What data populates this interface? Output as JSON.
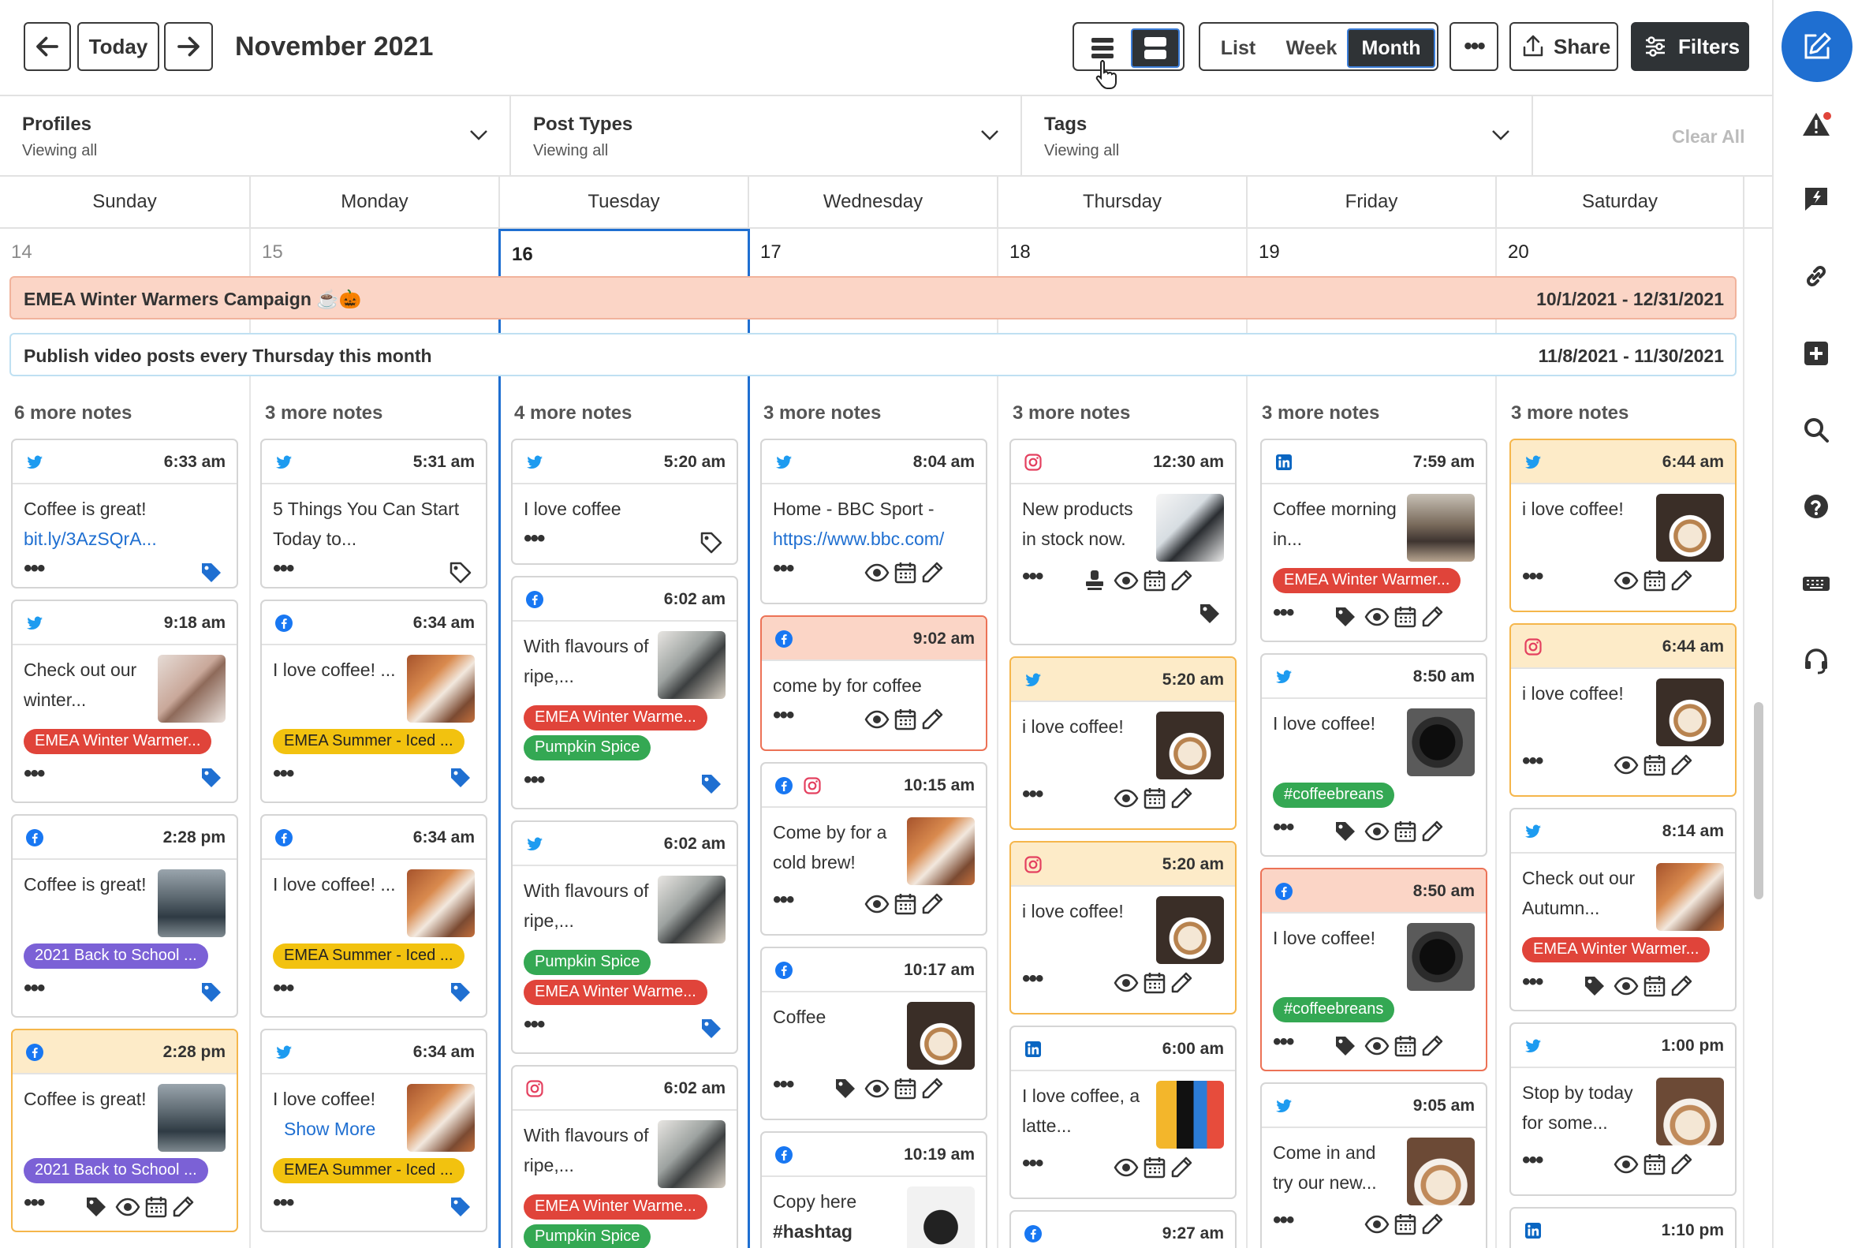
{
  "header": {
    "title": "November 2021",
    "today": "Today",
    "views": [
      "List",
      "Week",
      "Month"
    ],
    "active_view": "Month",
    "share": "Share",
    "filters": "Filters"
  },
  "filters": [
    {
      "title": "Profiles",
      "sub": "Viewing all"
    },
    {
      "title": "Post Types",
      "sub": "Viewing all"
    },
    {
      "title": "Tags",
      "sub": "Viewing all"
    }
  ],
  "clear_all": "Clear All",
  "days": [
    "Sunday",
    "Monday",
    "Tuesday",
    "Wednesday",
    "Thursday",
    "Friday",
    "Saturday"
  ],
  "dates": [
    "14",
    "15",
    "16",
    "17",
    "18",
    "19",
    "20"
  ],
  "banners": [
    {
      "label": "EMEA Winter Warmers Campaign ☕🎃",
      "range": "10/1/2021 - 12/31/2021"
    },
    {
      "label": "Publish video posts every Thursday this month",
      "range": "11/8/2021 - 11/30/2021"
    }
  ],
  "more_notes": [
    "6 more notes",
    "3 more notes",
    "4 more notes",
    "3 more notes",
    "3 more notes",
    "3 more notes",
    "3 more notes"
  ],
  "tag_colors": {
    "emea-winter": "#e0443a",
    "emea-summer": "#f2c20f",
    "pumpkin": "#34a853",
    "back-school": "#7b61d6",
    "coffeebreans": "#34a853"
  },
  "columns": [
    [
      {
        "time": "6:33 am",
        "net": [
          "twitter"
        ],
        "text": "Coffee is great!",
        "link": "bit.ly/3AzSQrA...",
        "actions": [
          "dots",
          "tag-blue"
        ]
      },
      {
        "time": "9:18 am",
        "net": [
          "twitter"
        ],
        "text": "Check out our winter...",
        "thumb": "cocoa",
        "tags": [
          {
            "t": "EMEA Winter Warmer...",
            "c": "emea-winter"
          }
        ],
        "actions": [
          "dots",
          "tag-blue"
        ]
      },
      {
        "time": "2:28 pm",
        "net": [
          "facebook"
        ],
        "text": "Coffee is great!",
        "thumb": "office",
        "tags": [
          {
            "t": "2021 Back to School ...",
            "c": "back-school"
          }
        ],
        "actions": [
          "dots",
          "tag-blue"
        ]
      },
      {
        "time": "2:28 pm",
        "net": [
          "facebook"
        ],
        "text": "Coffee is great!",
        "thumb": "office",
        "tags": [
          {
            "t": "2021 Back to School ...",
            "c": "back-school"
          }
        ],
        "actions": [
          "dots",
          "tag",
          "eye",
          "cal",
          "pen"
        ],
        "state": "warn"
      }
    ],
    [
      {
        "time": "5:31 am",
        "net": [
          "twitter"
        ],
        "text": "5 Things You Can Start Today to...",
        "actions": [
          "dots",
          "tag-outline"
        ]
      },
      {
        "time": "6:34 am",
        "net": [
          "facebook"
        ],
        "text": "I love coffee! ...",
        "thumb": "autumn",
        "tags": [
          {
            "t": "EMEA Summer - Iced ...",
            "c": "emea-summer"
          }
        ],
        "actions": [
          "dots",
          "tag-blue"
        ]
      },
      {
        "time": "6:34 am",
        "net": [
          "facebook"
        ],
        "text": "I love coffee! ...",
        "thumb": "autumn",
        "tags": [
          {
            "t": "EMEA Summer - Iced ...",
            "c": "emea-summer"
          }
        ],
        "actions": [
          "dots",
          "tag-blue"
        ]
      },
      {
        "time": "6:34 am",
        "net": [
          "twitter"
        ],
        "text": "I love coffee!",
        "showmore": "Show More",
        "thumb": "autumn",
        "tags": [
          {
            "t": "EMEA Summer - Iced ...",
            "c": "emea-summer"
          }
        ],
        "actions": [
          "dots",
          "tag-blue"
        ]
      }
    ],
    [
      {
        "time": "5:20 am",
        "net": [
          "twitter"
        ],
        "text": "I love coffee",
        "actions": [
          "dots",
          "tag-outline"
        ]
      },
      {
        "time": "6:02 am",
        "net": [
          "facebook"
        ],
        "text": "With flavours of ripe,...",
        "thumb": "pumpkin",
        "tags": [
          {
            "t": "EMEA Winter Warme...",
            "c": "emea-winter"
          },
          {
            "t": "Pumpkin Spice",
            "c": "pumpkin"
          }
        ],
        "actions": [
          "dots",
          "tag-blue"
        ]
      },
      {
        "time": "6:02 am",
        "net": [
          "twitter"
        ],
        "text": "With flavours of ripe,...",
        "thumb": "pumpkin",
        "tags": [
          {
            "t": "Pumpkin Spice",
            "c": "pumpkin"
          },
          {
            "t": "EMEA Winter Warme...",
            "c": "emea-winter"
          }
        ],
        "actions": [
          "dots",
          "tag-blue"
        ]
      },
      {
        "time": "6:02 am",
        "net": [
          "instagram"
        ],
        "text": "With flavours of ripe,...",
        "thumb": "pumpkin",
        "tags": [
          {
            "t": "EMEA Winter Warme...",
            "c": "emea-winter"
          },
          {
            "t": "Pumpkin Spice",
            "c": "pumpkin"
          }
        ],
        "actions": []
      }
    ],
    [
      {
        "time": "8:04 am",
        "net": [
          "twitter"
        ],
        "text": "Home - BBC Sport -",
        "link": "https://www.bbc.com/",
        "actions": [
          "dots",
          "eye",
          "cal",
          "pen"
        ]
      },
      {
        "time": "9:02 am",
        "net": [
          "facebook"
        ],
        "text": "come by for coffee",
        "actions": [
          "dots",
          "eye",
          "cal",
          "pen"
        ],
        "state": "err"
      },
      {
        "time": "10:15 am",
        "net": [
          "facebook",
          "instagram"
        ],
        "text": "Come by for a cold brew!",
        "thumb": "autumn",
        "actions": [
          "dots",
          "eye",
          "cal",
          "pen"
        ]
      },
      {
        "time": "10:17 am",
        "net": [
          "facebook"
        ],
        "text": "Coffee",
        "thumb": "latte",
        "actions": [
          "dots",
          "tag",
          "eye",
          "cal",
          "pen"
        ]
      },
      {
        "time": "10:19 am",
        "net": [
          "facebook"
        ],
        "text": "Copy here",
        "bold": "#hashtag",
        "thumb": "dog",
        "actions": []
      }
    ],
    [
      {
        "time": "12:30 am",
        "net": [
          "instagram"
        ],
        "text": "New products in stock now.",
        "thumb": "products",
        "actions": [
          "dots",
          "stamp",
          "eye",
          "cal",
          "pen"
        ],
        "extra_tag": true
      },
      {
        "time": "5:20 am",
        "net": [
          "twitter"
        ],
        "text": "i love coffee!",
        "thumb": "latte",
        "actions": [
          "dots",
          "eye",
          "cal",
          "pen"
        ],
        "state": "warn"
      },
      {
        "time": "5:20 am",
        "net": [
          "instagram"
        ],
        "text": "i love coffee!",
        "thumb": "latte",
        "actions": [
          "dots",
          "eye",
          "cal",
          "pen"
        ],
        "state": "warn"
      },
      {
        "time": "6:00 am",
        "net": [
          "linkedin"
        ],
        "text": "I love coffee, a latte...",
        "thumb": "book",
        "actions": [
          "dots",
          "eye",
          "cal",
          "pen"
        ]
      },
      {
        "time": "9:27 am",
        "net": [
          "facebook"
        ],
        "text": "",
        "actions": []
      }
    ],
    [
      {
        "time": "7:59 am",
        "net": [
          "linkedin"
        ],
        "text": "Coffee morning in...",
        "thumb": "cafe",
        "tags": [
          {
            "t": "EMEA Winter Warmer...",
            "c": "emea-winter"
          }
        ],
        "actions": [
          "dots",
          "tag",
          "eye",
          "cal",
          "pen"
        ]
      },
      {
        "time": "8:50 am",
        "net": [
          "twitter"
        ],
        "text": "I love coffee!",
        "thumb": "beans",
        "tags": [
          {
            "t": "#coffeebreans",
            "c": "coffeebreans"
          }
        ],
        "actions": [
          "dots",
          "tag",
          "eye",
          "cal",
          "pen"
        ]
      },
      {
        "time": "8:50 am",
        "net": [
          "facebook"
        ],
        "text": "I love coffee!",
        "thumb": "beans",
        "tags": [
          {
            "t": "#coffeebreans",
            "c": "coffeebreans"
          }
        ],
        "actions": [
          "dots",
          "tag",
          "eye",
          "cal",
          "pen"
        ],
        "state": "err"
      },
      {
        "time": "9:05 am",
        "net": [
          "twitter"
        ],
        "text": "Come in and try our new...",
        "thumb": "pour",
        "actions": [
          "dots",
          "eye",
          "cal",
          "pen"
        ]
      }
    ],
    [
      {
        "time": "6:44 am",
        "net": [
          "twitter"
        ],
        "text": "i love coffee!",
        "thumb": "latte",
        "actions": [
          "dots",
          "eye",
          "cal",
          "pen"
        ],
        "state": "warn"
      },
      {
        "time": "6:44 am",
        "net": [
          "instagram"
        ],
        "text": "i love coffee!",
        "thumb": "latte",
        "actions": [
          "dots",
          "eye",
          "cal",
          "pen"
        ],
        "state": "warn"
      },
      {
        "time": "8:14 am",
        "net": [
          "twitter"
        ],
        "text": "Check out our Autumn...",
        "thumb": "autumn",
        "tags": [
          {
            "t": "EMEA Winter Warmer...",
            "c": "emea-winter"
          }
        ],
        "actions": [
          "dots",
          "tag",
          "eye",
          "cal",
          "pen"
        ]
      },
      {
        "time": "1:00 pm",
        "net": [
          "twitter"
        ],
        "text": "Stop by today for some...",
        "thumb": "pour",
        "actions": [
          "dots",
          "eye",
          "cal",
          "pen"
        ]
      },
      {
        "time": "1:10 pm",
        "net": [
          "linkedin"
        ],
        "text": "",
        "actions": []
      }
    ]
  ],
  "rail": [
    "compose-icon",
    "alert-icon",
    "feedback-icon",
    "link-icon",
    "add-icon",
    "search-icon",
    "help-icon",
    "keyboard-icon",
    "support-icon"
  ]
}
